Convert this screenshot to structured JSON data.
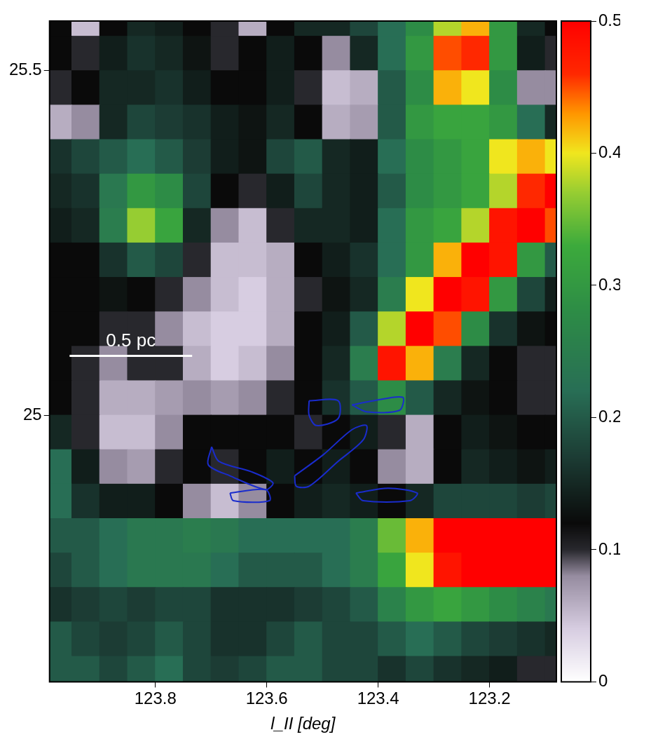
{
  "chart_data": {
    "type": "heatmap",
    "x_label": "l_II [deg]",
    "grid": false,
    "xlim": [
      123.99,
      123.08
    ],
    "xticks": [
      123.8,
      123.6,
      123.4,
      123.2
    ],
    "ylim": [
      24.613,
      25.572
    ],
    "yticks": [
      25,
      25.5
    ],
    "x": [
      123.975,
      123.925,
      123.875,
      123.825,
      123.775,
      123.725,
      123.675,
      123.625,
      123.575,
      123.525,
      123.475,
      123.425,
      123.375,
      123.325,
      123.275,
      123.225,
      123.175,
      123.125,
      123.075
    ],
    "y": [
      25.575,
      25.525,
      25.475,
      25.425,
      25.375,
      25.325,
      25.275,
      25.225,
      25.175,
      25.125,
      25.075,
      25.025,
      24.975,
      24.925,
      24.875,
      24.825,
      24.775,
      24.725,
      24.675,
      24.625
    ],
    "values": [
      [
        0.12,
        0.05,
        0.12,
        0.15,
        0.14,
        0.12,
        0.1,
        0.06,
        0.12,
        0.15,
        0.15,
        0.18,
        0.22,
        0.28,
        0.38,
        0.42,
        0.3,
        0.15,
        0.12
      ],
      [
        0.12,
        0.1,
        0.14,
        0.16,
        0.15,
        0.13,
        0.1,
        0.12,
        0.14,
        0.12,
        0.08,
        0.15,
        0.22,
        0.3,
        0.45,
        0.46,
        0.3,
        0.14,
        0.1
      ],
      [
        0.1,
        0.12,
        0.15,
        0.15,
        0.16,
        0.14,
        0.12,
        0.12,
        0.14,
        0.1,
        0.05,
        0.06,
        0.2,
        0.28,
        0.42,
        0.4,
        0.28,
        0.08,
        0.08
      ],
      [
        0.06,
        0.08,
        0.15,
        0.18,
        0.17,
        0.16,
        0.14,
        0.13,
        0.15,
        0.12,
        0.06,
        0.07,
        0.2,
        0.3,
        0.32,
        0.32,
        0.3,
        0.22,
        0.15
      ],
      [
        0.16,
        0.18,
        0.2,
        0.22,
        0.2,
        0.17,
        0.14,
        0.13,
        0.18,
        0.2,
        0.15,
        0.14,
        0.22,
        0.28,
        0.3,
        0.32,
        0.4,
        0.42,
        0.4
      ],
      [
        0.15,
        0.16,
        0.24,
        0.3,
        0.28,
        0.18,
        0.12,
        0.1,
        0.14,
        0.18,
        0.15,
        0.14,
        0.2,
        0.28,
        0.3,
        0.32,
        0.38,
        0.46,
        0.5
      ],
      [
        0.14,
        0.15,
        0.25,
        0.37,
        0.32,
        0.15,
        0.08,
        0.05,
        0.1,
        0.15,
        0.15,
        0.14,
        0.22,
        0.3,
        0.32,
        0.38,
        0.48,
        0.5,
        0.45
      ],
      [
        0.12,
        0.12,
        0.16,
        0.2,
        0.18,
        0.1,
        0.05,
        0.05,
        0.06,
        0.12,
        0.14,
        0.16,
        0.22,
        0.3,
        0.42,
        0.5,
        0.48,
        0.3,
        0.2
      ],
      [
        0.12,
        0.12,
        0.13,
        0.12,
        0.1,
        0.08,
        0.05,
        0.04,
        0.06,
        0.1,
        0.13,
        0.15,
        0.25,
        0.4,
        0.5,
        0.48,
        0.3,
        0.18,
        0.14
      ],
      [
        0.12,
        0.12,
        0.1,
        0.1,
        0.08,
        0.05,
        0.04,
        0.04,
        0.06,
        0.12,
        0.14,
        0.2,
        0.38,
        0.5,
        0.45,
        0.28,
        0.16,
        0.13,
        0.12
      ],
      [
        0.12,
        0.1,
        0.08,
        0.1,
        0.1,
        0.06,
        0.04,
        0.05,
        0.08,
        0.12,
        0.15,
        0.25,
        0.48,
        0.42,
        0.25,
        0.15,
        0.12,
        0.1,
        0.1
      ],
      [
        0.12,
        0.1,
        0.06,
        0.06,
        0.07,
        0.08,
        0.07,
        0.08,
        0.1,
        0.12,
        0.16,
        0.2,
        0.28,
        0.2,
        0.15,
        0.13,
        0.12,
        0.1,
        0.1
      ],
      [
        0.15,
        0.1,
        0.05,
        0.05,
        0.08,
        0.12,
        0.12,
        0.12,
        0.12,
        0.1,
        0.12,
        0.14,
        0.1,
        0.06,
        0.12,
        0.14,
        0.13,
        0.12,
        0.12
      ],
      [
        0.22,
        0.14,
        0.08,
        0.07,
        0.1,
        0.12,
        0.1,
        0.12,
        0.14,
        0.12,
        0.14,
        0.12,
        0.08,
        0.06,
        0.12,
        0.15,
        0.14,
        0.13,
        0.14
      ],
      [
        0.22,
        0.16,
        0.14,
        0.14,
        0.12,
        0.08,
        0.05,
        0.08,
        0.12,
        0.14,
        0.15,
        0.14,
        0.12,
        0.15,
        0.18,
        0.18,
        0.18,
        0.17,
        0.18
      ],
      [
        0.2,
        0.2,
        0.22,
        0.24,
        0.24,
        0.25,
        0.24,
        0.22,
        0.22,
        0.22,
        0.22,
        0.25,
        0.35,
        0.42,
        0.5,
        0.5,
        0.5,
        0.5,
        0.5
      ],
      [
        0.18,
        0.2,
        0.22,
        0.24,
        0.24,
        0.24,
        0.22,
        0.2,
        0.2,
        0.2,
        0.22,
        0.25,
        0.32,
        0.4,
        0.48,
        0.5,
        0.5,
        0.5,
        0.5
      ],
      [
        0.16,
        0.17,
        0.18,
        0.17,
        0.18,
        0.18,
        0.16,
        0.16,
        0.16,
        0.17,
        0.18,
        0.2,
        0.26,
        0.3,
        0.32,
        0.3,
        0.28,
        0.26,
        0.24
      ],
      [
        0.2,
        0.18,
        0.17,
        0.18,
        0.2,
        0.18,
        0.16,
        0.16,
        0.18,
        0.2,
        0.18,
        0.18,
        0.2,
        0.22,
        0.2,
        0.18,
        0.17,
        0.16,
        0.15
      ],
      [
        0.2,
        0.2,
        0.18,
        0.2,
        0.22,
        0.18,
        0.17,
        0.18,
        0.2,
        0.2,
        0.18,
        0.18,
        0.16,
        0.18,
        0.16,
        0.15,
        0.14,
        0.1,
        0.1
      ]
    ],
    "colorbar_lim": [
      0,
      0.5
    ],
    "colorbar_ticks": [
      0,
      0.1,
      0.2,
      0.3,
      0.4,
      0.5
    ],
    "contours": {
      "color": "#1a2ccc",
      "paths": [
        [
          [
            123.524,
            25.021
          ],
          [
            123.472,
            25.021
          ],
          [
            123.472,
            24.995
          ],
          [
            123.511,
            24.985
          ],
          [
            123.524,
            25.0
          ],
          [
            123.524,
            25.021
          ]
        ],
        [
          [
            123.55,
            24.912
          ],
          [
            123.498,
            24.943
          ],
          [
            123.447,
            24.979
          ],
          [
            123.421,
            24.985
          ],
          [
            123.427,
            24.964
          ],
          [
            123.472,
            24.933
          ],
          [
            123.524,
            24.897
          ],
          [
            123.547,
            24.897
          ],
          [
            123.55,
            24.912
          ]
        ],
        [
          [
            123.699,
            24.954
          ],
          [
            123.686,
            24.933
          ],
          [
            123.628,
            24.918
          ],
          [
            123.589,
            24.902
          ],
          [
            123.602,
            24.892
          ],
          [
            123.666,
            24.912
          ],
          [
            123.705,
            24.928
          ],
          [
            123.699,
            24.954
          ]
        ],
        [
          [
            123.666,
            24.887
          ],
          [
            123.602,
            24.892
          ],
          [
            123.595,
            24.876
          ],
          [
            123.66,
            24.876
          ],
          [
            123.666,
            24.887
          ]
        ],
        [
          [
            123.44,
            24.887
          ],
          [
            123.382,
            24.894
          ],
          [
            123.33,
            24.887
          ],
          [
            123.343,
            24.876
          ],
          [
            123.427,
            24.876
          ],
          [
            123.44,
            24.887
          ]
        ],
        [
          [
            123.447,
            25.015
          ],
          [
            123.408,
            25.021
          ],
          [
            123.356,
            25.026
          ],
          [
            123.362,
            25.007
          ],
          [
            123.421,
            25.005
          ],
          [
            123.447,
            25.015
          ]
        ]
      ]
    },
    "scale_bar": {
      "label": "0.5 pc",
      "x": [
        123.954,
        123.734
      ],
      "y": 25.086
    }
  }
}
